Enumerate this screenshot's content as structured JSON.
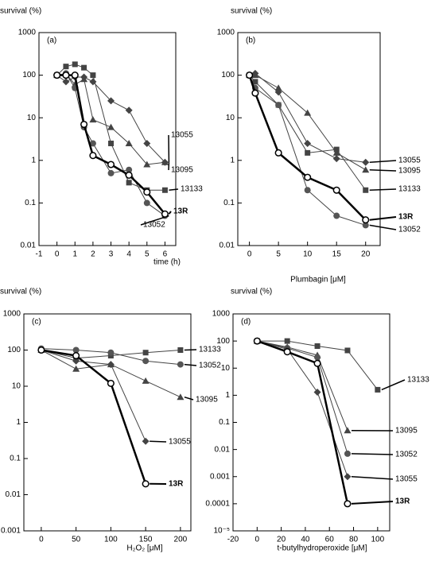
{
  "chart_data": [
    {
      "type": "line",
      "title": "(a)",
      "y_label": "survival (%)",
      "x_label": "time (h)",
      "log_y": true,
      "x": [
        0,
        0.5,
        1,
        1.5,
        2,
        3,
        4,
        5,
        6
      ],
      "xlim": [
        -1,
        6.6
      ],
      "xticks": [
        -1,
        0,
        1,
        2,
        3,
        4,
        5,
        6
      ],
      "ylim": [
        0.01,
        1000
      ],
      "yticks": [
        0.01,
        0.1,
        1,
        10,
        100,
        1000
      ],
      "series": [
        {
          "name": "13055",
          "marker": "diamond",
          "color": "#444444",
          "values": [
            100,
            70,
            90,
            90,
            70,
            25,
            15,
            2.5,
            0.9
          ]
        },
        {
          "name": "13095",
          "marker": "triangle",
          "color": "#444444",
          "values": [
            100,
            110,
            60,
            80,
            9,
            6,
            2.5,
            0.8,
            0.9
          ]
        },
        {
          "name": "13133",
          "marker": "square",
          "color": "#444444",
          "values": [
            100,
            160,
            180,
            150,
            100,
            2.5,
            0.3,
            0.2,
            0.2
          ]
        },
        {
          "name": "13052",
          "marker": "circle",
          "color": "#555555",
          "values": [
            100,
            110,
            50,
            6,
            2.5,
            0.5,
            0.6,
            0.1,
            0.05
          ]
        },
        {
          "name": "13R",
          "marker": "open-circle",
          "color": "#000000",
          "values": [
            100,
            100,
            100,
            7,
            1.3,
            0.8,
            0.45,
            0.18,
            0.055
          ]
        }
      ]
    },
    {
      "type": "line",
      "title": "(b)",
      "y_label": "survival (%)",
      "x_label": "Plumbagin [μM]",
      "log_y": true,
      "x": [
        0,
        1,
        5,
        10,
        15,
        20
      ],
      "xlim": [
        -2,
        22.5
      ],
      "xticks": [
        0,
        5,
        10,
        15,
        20
      ],
      "ylim": [
        0.01,
        1000
      ],
      "yticks": [
        0.01,
        0.1,
        1,
        10,
        100,
        1000
      ],
      "series": [
        {
          "name": "13055",
          "marker": "diamond",
          "color": "#444444",
          "values": [
            100,
            110,
            40,
            2.5,
            1.1,
            0.9
          ]
        },
        {
          "name": "13095",
          "marker": "triangle",
          "color": "#444444",
          "values": [
            100,
            100,
            50,
            13,
            1.5,
            0.6
          ]
        },
        {
          "name": "13133",
          "marker": "square",
          "color": "#444444",
          "values": [
            100,
            70,
            20,
            1.5,
            1.8,
            0.2
          ]
        },
        {
          "name": "13052",
          "marker": "circle",
          "color": "#555555",
          "values": [
            100,
            50,
            20,
            0.2,
            0.05,
            0.03
          ]
        },
        {
          "name": "13R",
          "marker": "open-circle",
          "color": "#000000",
          "values": [
            100,
            38,
            1.5,
            0.4,
            0.2,
            0.04
          ]
        }
      ]
    },
    {
      "type": "line",
      "title": "(c)",
      "y_label": "survival (%)",
      "x_label": "H₂O₂ [μM]",
      "log_y": true,
      "x": [
        0,
        50,
        100,
        150,
        200
      ],
      "xlim": [
        -25,
        215
      ],
      "xticks": [
        0,
        50,
        100,
        150,
        200
      ],
      "ylim": [
        0.001,
        1000
      ],
      "yticks": [
        0.001,
        0.01,
        0.1,
        1,
        10,
        100,
        1000
      ],
      "series": [
        {
          "name": "13133",
          "marker": "square",
          "color": "#444444",
          "values": [
            100,
            60,
            70,
            85,
            100
          ]
        },
        {
          "name": "13052",
          "marker": "circle",
          "color": "#555555",
          "values": [
            110,
            100,
            85,
            50,
            40
          ]
        },
        {
          "name": "13095",
          "marker": "triangle",
          "color": "#444444",
          "values": [
            100,
            30,
            40,
            14,
            5
          ]
        },
        {
          "name": "13055",
          "marker": "diamond",
          "color": "#444444",
          "values": [
            100,
            50,
            40,
            0.3,
            null
          ]
        },
        {
          "name": "13R",
          "marker": "open-circle",
          "color": "#000000",
          "values": [
            100,
            70,
            12,
            0.02,
            null
          ]
        }
      ]
    },
    {
      "type": "line",
      "title": "(d)",
      "y_label": "survival (%)",
      "x_label": "t-butylhydroperoxide [μM]",
      "log_y": true,
      "x": [
        0,
        25,
        50,
        75,
        100
      ],
      "xlim": [
        -20,
        110
      ],
      "xticks": [
        -20,
        0,
        20,
        40,
        60,
        80,
        100
      ],
      "ylim": [
        1e-05,
        1000
      ],
      "yticks": [
        {
          "value": 1e-05,
          "label": "10⁻⁵"
        },
        0.0001,
        0.001,
        0.01,
        0.1,
        1,
        10,
        100,
        1000
      ],
      "series": [
        {
          "name": "13133",
          "marker": "square",
          "color": "#444444",
          "values": [
            100,
            100,
            65,
            45,
            1.6
          ]
        },
        {
          "name": "13095",
          "marker": "triangle",
          "color": "#444444",
          "values": [
            100,
            60,
            30,
            0.05,
            null
          ]
        },
        {
          "name": "13052",
          "marker": "circle",
          "color": "#555555",
          "values": [
            100,
            55,
            25,
            0.007,
            null
          ]
        },
        {
          "name": "13055",
          "marker": "diamond",
          "color": "#444444",
          "values": [
            100,
            50,
            1.3,
            0.001,
            null
          ]
        },
        {
          "name": "13R",
          "marker": "open-circle",
          "color": "#000000",
          "values": [
            100,
            40,
            15,
            0.0001,
            null
          ]
        }
      ]
    }
  ]
}
